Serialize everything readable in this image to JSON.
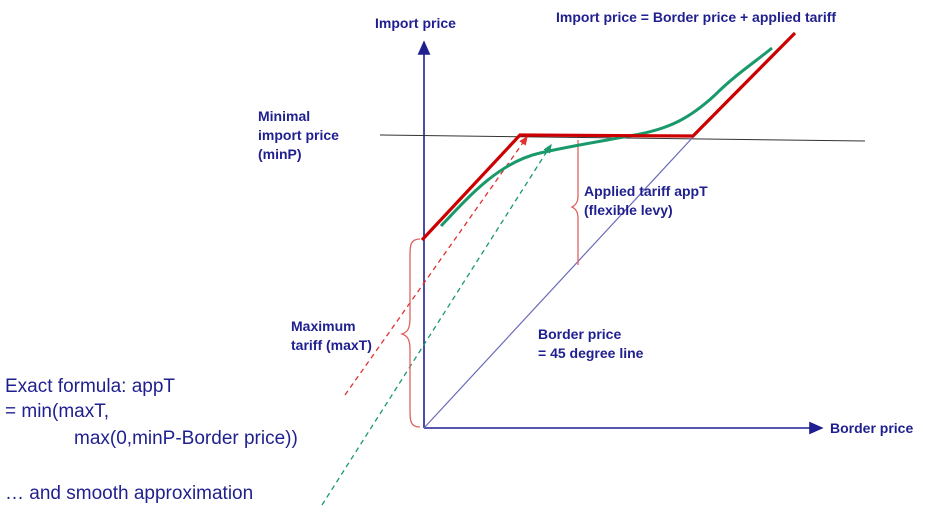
{
  "labels": {
    "import_price_axis": "Import price",
    "border_price_axis": "Border price",
    "equation": "Import price = Border price + applied tariff",
    "min_import_price": [
      "Minimal",
      "import price",
      "(minP)"
    ],
    "applied_tariff": [
      "Applied tariff appT",
      "(flexible levy)"
    ],
    "maximum_tariff": [
      "Maximum",
      "tariff (maxT)"
    ],
    "border_45": [
      "Border price",
      "= 45 degree line"
    ],
    "formula": [
      "Exact formula: appT",
      "= min(maxT,",
      "max(0,minP-Border price))"
    ],
    "smooth": "… and smooth approximation"
  },
  "colors": {
    "axis": "#1f1f8f",
    "label": "#1f1f8f",
    "exact_curve": "#cc0000",
    "smooth_curve": "#1a9a6a",
    "brace": "#e06060",
    "min_line": "#333333",
    "diagonal": "#6a6ab8"
  }
}
